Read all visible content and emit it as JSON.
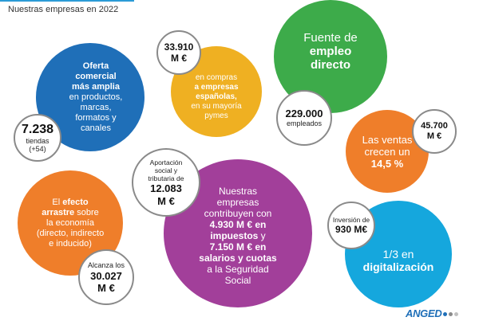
{
  "title": "Nuestras empresas en 2022",
  "blue": {
    "line1": "Oferta",
    "line2": "comercial",
    "line3": "más amplia",
    "line4": "en productos,",
    "line5": "marcas,",
    "line6": "formatos y",
    "line7": "canales"
  },
  "tiendas": {
    "value": "7.238",
    "label": "tiendas",
    "delta": "(+54)"
  },
  "compras": {
    "value1": "33.910",
    "value2": "M €",
    "line1": "en compras",
    "line2": "a empresas",
    "line3": "españolas,",
    "line4": "en su mayoría",
    "line5": "pymes"
  },
  "empleo": {
    "line1": "Fuente de",
    "line2": "empleo",
    "line3": "directo",
    "value": "229.000",
    "label": "empleados"
  },
  "ventas": {
    "line1": "Las ventas",
    "line2": "crecen un",
    "line3": "14,5 %",
    "value1": "45.700",
    "value2": "M €"
  },
  "aportacion": {
    "line1": "Aportación",
    "line2": "social y",
    "line3": "tributaria de",
    "value1": "12.083",
    "value2": "M €"
  },
  "purple": {
    "line1": "Nuestras",
    "line2": "empresas",
    "line3": "contribuyen con",
    "line4": "4.930 M € en",
    "line5": "impuestos",
    "line5b": "y",
    "line6": "7.150 M € en",
    "line7": "salarios y cuotas",
    "line8": "a la Seguridad",
    "line9": "Social"
  },
  "arrastre": {
    "line1a": "El",
    "line1b": "efecto",
    "line2a": "arrastre",
    "line2b": "sobre",
    "line3": "la economía",
    "line4": "(directo, indirecto",
    "line5": "e inducido)"
  },
  "alcanza": {
    "label": "Alcanza los",
    "value1": "30.027",
    "value2": "M €"
  },
  "digital": {
    "line1": "1/3 en",
    "line2": "digitalización",
    "badge_label": "Inversión de",
    "badge_value": "930 M€"
  },
  "logo": "ANGED",
  "colors": {
    "blue": "#1f6fb8",
    "yellow": "#efb022",
    "green": "#3dab4a",
    "orange": "#ef7e2a",
    "purple": "#a23f9a",
    "cyan": "#15a7dd"
  }
}
